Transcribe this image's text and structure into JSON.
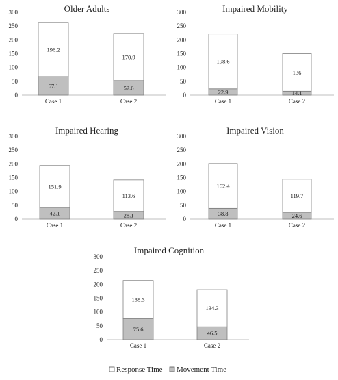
{
  "chart_data": [
    {
      "type": "bar",
      "stacked": true,
      "title": "Older Adults",
      "categories": [
        "Case 1",
        "Case 2"
      ],
      "series": [
        {
          "name": "Movement Time",
          "values": [
            67.1,
            52.6
          ]
        },
        {
          "name": "Response Time",
          "values": [
            196.2,
            170.9
          ]
        }
      ],
      "ylim": [
        0,
        300
      ],
      "yticks": [
        "0",
        "50",
        "100",
        "150",
        "200",
        "250",
        "300"
      ],
      "grid": false
    },
    {
      "type": "bar",
      "stacked": true,
      "title": "Impaired Mobility",
      "categories": [
        "Case 1",
        "Case 2"
      ],
      "series": [
        {
          "name": "Movement Time",
          "values": [
            22.9,
            14.1
          ]
        },
        {
          "name": "Response Time",
          "values": [
            198.6,
            136
          ]
        }
      ],
      "ylim": [
        0,
        300
      ],
      "yticks": [
        "0",
        "50",
        "100",
        "150",
        "200",
        "250",
        "300"
      ],
      "grid": false
    },
    {
      "type": "bar",
      "stacked": true,
      "title": "Impaired Hearing",
      "categories": [
        "Case 1",
        "Case 2"
      ],
      "series": [
        {
          "name": "Movement Time",
          "values": [
            42.1,
            28.1
          ]
        },
        {
          "name": "Response Time",
          "values": [
            151.9,
            113.6
          ]
        }
      ],
      "ylim": [
        0,
        300
      ],
      "yticks": [
        "0",
        "50",
        "100",
        "150",
        "200",
        "250",
        "300"
      ],
      "grid": false
    },
    {
      "type": "bar",
      "stacked": true,
      "title": "Impaired Vision",
      "categories": [
        "Case 1",
        "Case 2"
      ],
      "series": [
        {
          "name": "Movement Time",
          "values": [
            38.8,
            24.6
          ]
        },
        {
          "name": "Response Time",
          "values": [
            162.4,
            119.7
          ]
        }
      ],
      "ylim": [
        0,
        300
      ],
      "yticks": [
        "0",
        "50",
        "100",
        "150",
        "200",
        "250",
        "300"
      ],
      "grid": false
    },
    {
      "type": "bar",
      "stacked": true,
      "title": "Impaired Cognition",
      "categories": [
        "Case 1",
        "Case 2"
      ],
      "series": [
        {
          "name": "Movement Time",
          "values": [
            75.6,
            46.5
          ]
        },
        {
          "name": "Response Time",
          "values": [
            138.3,
            134.3
          ]
        }
      ],
      "ylim": [
        0,
        300
      ],
      "yticks": [
        "0",
        "50",
        "100",
        "150",
        "200",
        "250",
        "300"
      ],
      "grid": false
    }
  ],
  "legend": {
    "position": "bottom",
    "items": [
      {
        "label": "Response Time",
        "color": "#ffffff"
      },
      {
        "label": "Movement Time",
        "color": "#bfbfbf"
      }
    ]
  },
  "colors": {
    "movement": "#bfbfbf",
    "response": "#ffffff",
    "bar_edge": "#7f7f7f",
    "axis": "#bfbfbf"
  }
}
